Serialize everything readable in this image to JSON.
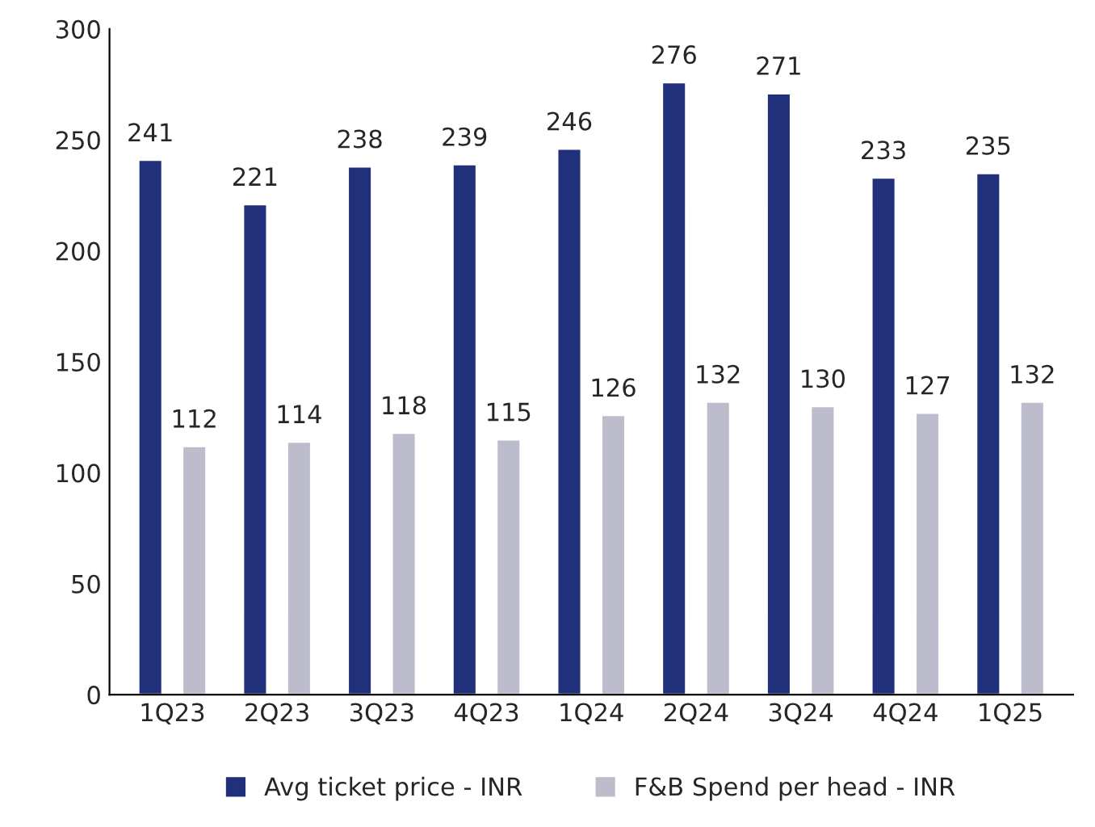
{
  "chart_data": {
    "type": "bar",
    "categories": [
      "1Q23",
      "2Q23",
      "3Q23",
      "4Q23",
      "1Q24",
      "2Q24",
      "3Q24",
      "4Q24",
      "1Q25"
    ],
    "series": [
      {
        "name": "Avg ticket price - INR",
        "color": "#21307a",
        "values": [
          241,
          221,
          238,
          239,
          246,
          276,
          271,
          233,
          235
        ]
      },
      {
        "name": "F&B Spend per head - INR",
        "color": "#bdbccc",
        "values": [
          112,
          114,
          118,
          115,
          126,
          132,
          130,
          127,
          132
        ]
      }
    ],
    "ylim": [
      0,
      300
    ],
    "yticks": [
      0,
      50,
      100,
      150,
      200,
      250,
      300
    ],
    "grid": false,
    "legend": "bottom",
    "data_labels": true
  }
}
